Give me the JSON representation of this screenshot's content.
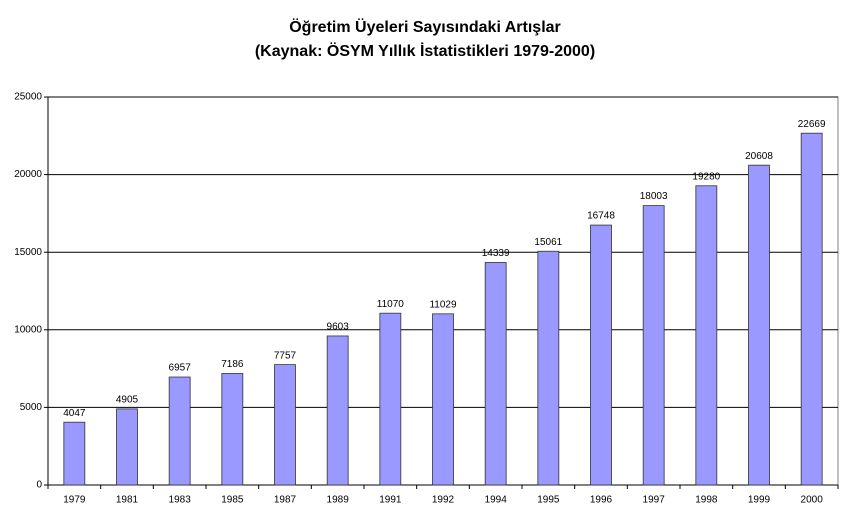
{
  "chart_data": {
    "type": "bar",
    "title": "Öğretim Üyeleri Sayısındaki Artışlar",
    "subtitle": "(Kaynak: ÖSYM Yıllık İstatistikleri 1979-2000)",
    "categories": [
      "1979",
      "1981",
      "1983",
      "1985",
      "1987",
      "1989",
      "1991",
      "1992",
      "1994",
      "1995",
      "1996",
      "1997",
      "1998",
      "1999",
      "2000"
    ],
    "values": [
      4047,
      4905,
      6957,
      7186,
      7757,
      9603,
      11070,
      11029,
      14339,
      15061,
      16748,
      18003,
      19280,
      20608,
      22669
    ],
    "color": "#9999ff",
    "ylim": [
      0,
      25000
    ],
    "yticks": [
      0,
      5000,
      10000,
      15000,
      20000,
      25000
    ],
    "grid": true
  }
}
